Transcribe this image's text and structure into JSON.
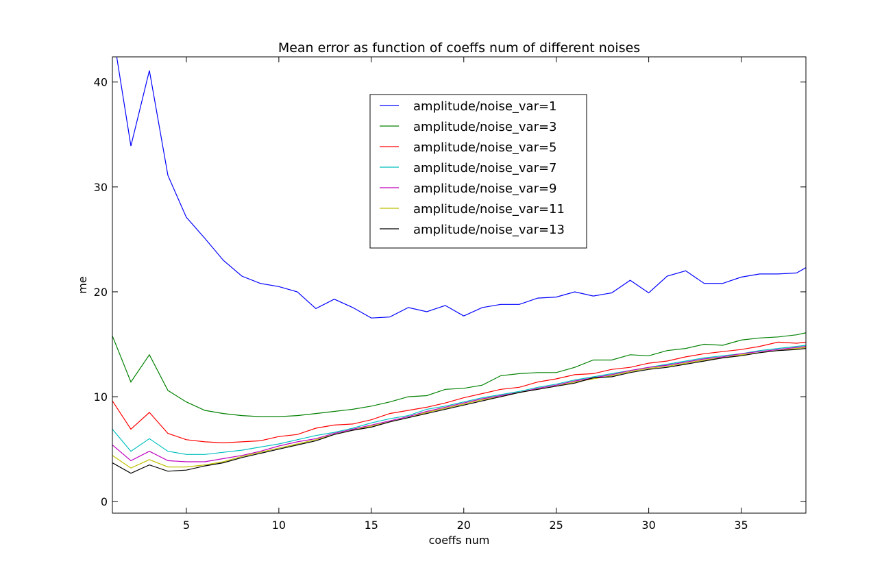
{
  "chart_data": {
    "type": "line",
    "title": "Mean error as function of coeffs num of different noises",
    "xlabel": "coeffs num",
    "ylabel": "me",
    "xlim": [
      1,
      38.5
    ],
    "ylim": [
      -1.1,
      42.4
    ],
    "xticks": [
      5,
      10,
      15,
      20,
      25,
      30,
      35
    ],
    "yticks": [
      0,
      10,
      20,
      30,
      40
    ],
    "grid": false,
    "legend_position": "upper center",
    "x": [
      1,
      2,
      3,
      4,
      5,
      6,
      7,
      8,
      9,
      10,
      11,
      12,
      13,
      14,
      15,
      16,
      17,
      18,
      19,
      20,
      21,
      22,
      23,
      24,
      25,
      26,
      27,
      28,
      29,
      30,
      31,
      32,
      33,
      34,
      35,
      36,
      37,
      38,
      38.5
    ],
    "series": [
      {
        "name": "amplitude/noise_var=1",
        "color": "#0000ff",
        "values": [
          45.0,
          33.9,
          41.1,
          31.1,
          27.1,
          25.1,
          23.0,
          21.5,
          20.8,
          20.5,
          20.0,
          18.4,
          19.3,
          18.5,
          17.5,
          17.6,
          18.5,
          18.1,
          18.7,
          17.7,
          18.5,
          18.8,
          18.8,
          19.4,
          19.5,
          20.0,
          19.6,
          19.9,
          21.1,
          19.9,
          21.5,
          22.0,
          20.8,
          20.8,
          21.4,
          21.7,
          21.7,
          21.8,
          22.3
        ]
      },
      {
        "name": "amplitude/noise_var=3",
        "color": "#008000",
        "values": [
          15.8,
          11.4,
          14.0,
          10.6,
          9.5,
          8.7,
          8.4,
          8.2,
          8.1,
          8.1,
          8.2,
          8.4,
          8.6,
          8.8,
          9.1,
          9.5,
          10.0,
          10.1,
          10.7,
          10.8,
          11.1,
          12.0,
          12.2,
          12.3,
          12.3,
          12.8,
          13.5,
          13.5,
          14.0,
          13.9,
          14.4,
          14.6,
          15.0,
          14.9,
          15.4,
          15.6,
          15.7,
          15.9,
          16.1
        ]
      },
      {
        "name": "amplitude/noise_var=5",
        "color": "#ff0000",
        "values": [
          9.6,
          6.9,
          8.5,
          6.5,
          5.9,
          5.7,
          5.6,
          5.7,
          5.8,
          6.2,
          6.4,
          7.0,
          7.3,
          7.4,
          7.8,
          8.4,
          8.7,
          9.0,
          9.4,
          9.9,
          10.3,
          10.7,
          10.9,
          11.4,
          11.7,
          12.1,
          12.2,
          12.6,
          12.8,
          13.2,
          13.4,
          13.8,
          14.1,
          14.3,
          14.5,
          14.8,
          15.2,
          15.1,
          15.2
        ]
      },
      {
        "name": "amplitude/noise_var=7",
        "color": "#00bfbf",
        "values": [
          6.9,
          4.8,
          6.0,
          4.8,
          4.5,
          4.5,
          4.7,
          4.9,
          5.2,
          5.5,
          5.9,
          6.3,
          6.6,
          7.0,
          7.5,
          7.9,
          8.2,
          8.8,
          9.1,
          9.5,
          9.9,
          10.2,
          10.5,
          10.9,
          11.2,
          11.6,
          11.9,
          12.2,
          12.5,
          12.8,
          13.1,
          13.4,
          13.7,
          13.9,
          14.1,
          14.4,
          14.6,
          14.8,
          14.9
        ]
      },
      {
        "name": "amplitude/noise_var=9",
        "color": "#bf00bf",
        "values": [
          5.4,
          3.9,
          4.8,
          3.9,
          3.8,
          3.8,
          4.1,
          4.4,
          4.8,
          5.3,
          5.7,
          6.0,
          6.5,
          6.9,
          7.3,
          7.7,
          8.1,
          8.6,
          9.0,
          9.4,
          9.8,
          10.1,
          10.4,
          10.8,
          11.1,
          11.5,
          11.8,
          12.1,
          12.5,
          12.8,
          13.0,
          13.3,
          13.6,
          13.8,
          14.1,
          14.3,
          14.5,
          14.7,
          14.8
        ]
      },
      {
        "name": "amplitude/noise_var=11",
        "color": "#bfbf00",
        "values": [
          4.4,
          3.2,
          4.0,
          3.3,
          3.3,
          3.5,
          3.8,
          4.3,
          4.7,
          5.1,
          5.5,
          5.9,
          6.4,
          6.8,
          7.2,
          7.6,
          8.0,
          8.5,
          8.9,
          9.3,
          9.7,
          10.0,
          10.4,
          10.7,
          11.0,
          11.4,
          11.7,
          12.0,
          12.4,
          12.7,
          12.9,
          13.2,
          13.5,
          13.7,
          14.0,
          14.2,
          14.4,
          14.6,
          14.7
        ]
      },
      {
        "name": "amplitude/noise_var=13",
        "color": "#000000",
        "values": [
          3.7,
          2.7,
          3.5,
          2.9,
          3.0,
          3.4,
          3.7,
          4.2,
          4.6,
          5.0,
          5.4,
          5.8,
          6.4,
          6.8,
          7.1,
          7.6,
          8.0,
          8.4,
          8.8,
          9.2,
          9.6,
          10.0,
          10.4,
          10.7,
          11.0,
          11.3,
          11.8,
          11.9,
          12.3,
          12.6,
          12.8,
          13.1,
          13.4,
          13.7,
          13.9,
          14.2,
          14.4,
          14.5,
          14.6
        ]
      }
    ]
  }
}
